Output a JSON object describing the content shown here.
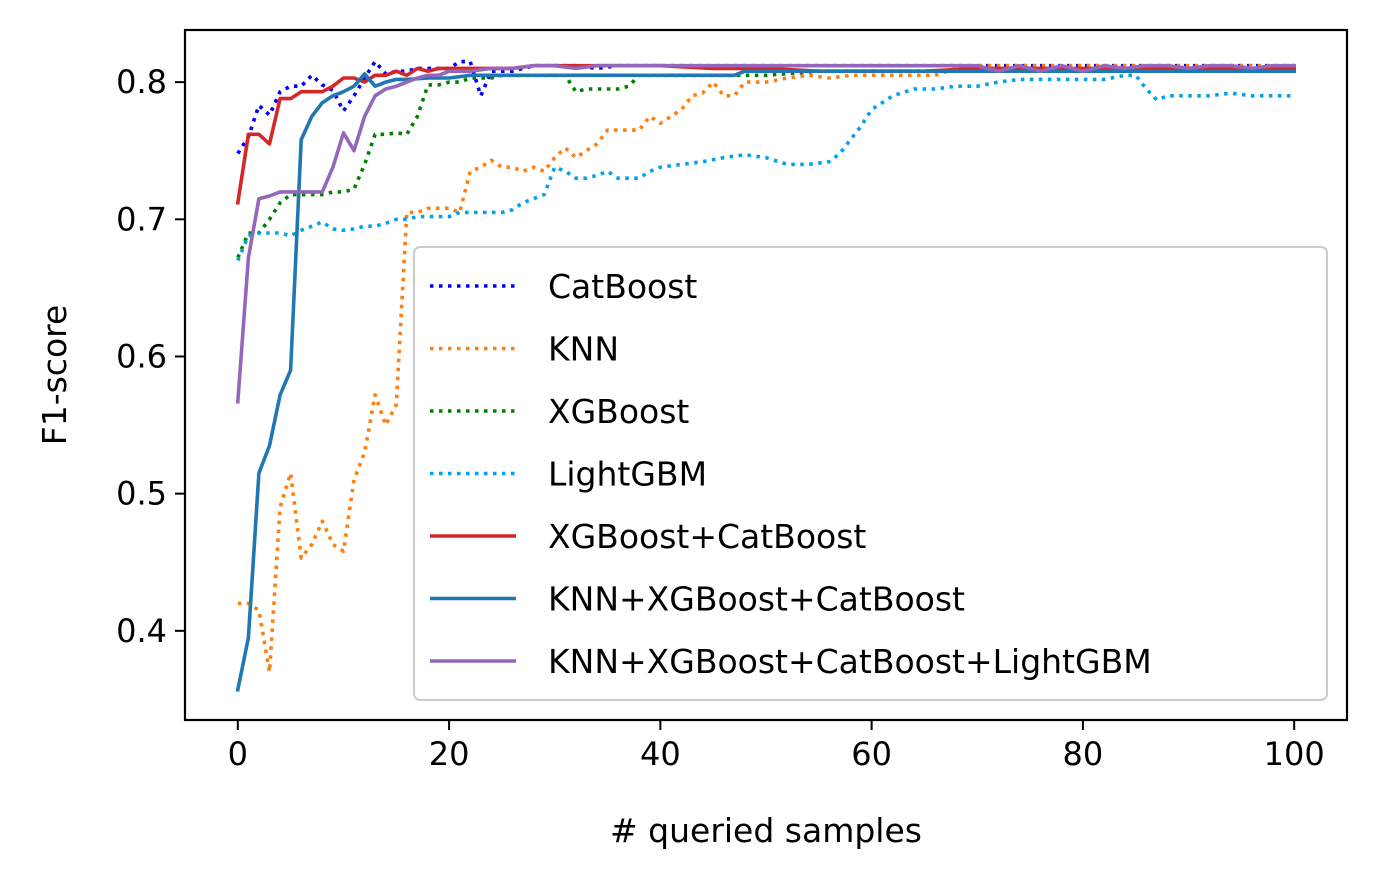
{
  "chart_data": {
    "type": "line",
    "xlabel": "# queried samples",
    "ylabel": "F1-score",
    "xlim": [
      -5,
      105
    ],
    "ylim": [
      0.335,
      0.838
    ],
    "xticks": [
      0,
      20,
      40,
      60,
      80,
      100
    ],
    "xtick_labels": [
      "0",
      "20",
      "40",
      "60",
      "80",
      "100"
    ],
    "yticks": [
      0.4,
      0.5,
      0.6,
      0.7,
      0.8
    ],
    "ytick_labels": [
      "0.4",
      "0.5",
      "0.6",
      "0.7",
      "0.8"
    ],
    "grid": false,
    "legend_position": "lower-right",
    "series": [
      {
        "name": "CatBoost",
        "color": "#0000ff",
        "style": "dotted",
        "x": [
          0,
          1,
          2,
          3,
          4,
          5,
          6,
          7,
          8,
          9,
          10,
          11,
          12,
          13,
          14,
          15,
          16,
          17,
          18,
          19,
          20,
          21,
          22,
          23,
          24,
          26,
          28,
          30,
          32,
          34,
          36,
          38,
          40,
          45,
          50,
          55,
          60,
          65,
          70,
          75,
          80,
          85,
          90,
          95,
          100
        ],
        "y": [
          0.748,
          0.76,
          0.783,
          0.776,
          0.793,
          0.797,
          0.797,
          0.805,
          0.798,
          0.794,
          0.779,
          0.79,
          0.803,
          0.815,
          0.806,
          0.808,
          0.808,
          0.81,
          0.81,
          0.81,
          0.81,
          0.815,
          0.815,
          0.79,
          0.808,
          0.808,
          0.812,
          0.812,
          0.812,
          0.81,
          0.812,
          0.812,
          0.812,
          0.812,
          0.812,
          0.812,
          0.812,
          0.812,
          0.812,
          0.812,
          0.812,
          0.812,
          0.812,
          0.812,
          0.812
        ]
      },
      {
        "name": "KNN",
        "color": "#ff7f0e",
        "style": "dotted",
        "x": [
          0,
          1,
          2,
          3,
          4,
          5,
          6,
          7,
          8,
          9,
          10,
          11,
          12,
          13,
          14,
          15,
          16,
          17,
          18,
          19,
          20,
          21,
          22,
          23,
          24,
          25,
          26,
          27,
          28,
          29,
          30,
          31,
          32,
          33,
          34,
          35,
          36,
          37,
          38,
          39,
          40,
          41,
          42,
          43,
          44,
          45,
          46,
          47,
          48,
          49,
          50,
          52,
          54,
          56,
          58,
          60,
          62,
          64,
          66,
          68,
          70,
          72,
          74,
          76,
          78,
          80,
          82,
          84,
          86,
          88,
          90,
          92,
          94,
          96,
          98,
          100
        ],
        "y": [
          0.42,
          0.42,
          0.415,
          0.37,
          0.49,
          0.515,
          0.453,
          0.463,
          0.48,
          0.463,
          0.458,
          0.51,
          0.53,
          0.572,
          0.55,
          0.565,
          0.705,
          0.705,
          0.708,
          0.708,
          0.708,
          0.705,
          0.735,
          0.738,
          0.743,
          0.738,
          0.738,
          0.735,
          0.738,
          0.735,
          0.745,
          0.752,
          0.745,
          0.75,
          0.755,
          0.765,
          0.765,
          0.765,
          0.765,
          0.775,
          0.77,
          0.775,
          0.78,
          0.79,
          0.792,
          0.8,
          0.79,
          0.79,
          0.8,
          0.8,
          0.8,
          0.803,
          0.805,
          0.803,
          0.805,
          0.805,
          0.805,
          0.805,
          0.805,
          0.81,
          0.812,
          0.812,
          0.812,
          0.812,
          0.812,
          0.812,
          0.812,
          0.812,
          0.812,
          0.812,
          0.812,
          0.812,
          0.812,
          0.812,
          0.812,
          0.812
        ]
      },
      {
        "name": "XGBoost",
        "color": "#008000",
        "style": "dotted",
        "x": [
          0,
          1,
          2,
          3,
          4,
          5,
          6,
          7,
          8,
          9,
          10,
          11,
          12,
          13,
          14,
          15,
          16,
          17,
          18,
          19,
          20,
          21,
          22,
          23,
          24,
          25,
          26,
          28,
          30,
          31,
          32,
          33,
          34,
          35,
          36,
          37,
          38,
          39,
          40,
          45,
          50,
          55,
          60,
          65,
          70,
          75,
          80,
          85,
          90,
          95,
          100
        ],
        "y": [
          0.672,
          0.69,
          0.69,
          0.7,
          0.712,
          0.718,
          0.718,
          0.718,
          0.718,
          0.72,
          0.72,
          0.722,
          0.74,
          0.762,
          0.762,
          0.763,
          0.762,
          0.775,
          0.798,
          0.798,
          0.8,
          0.8,
          0.803,
          0.803,
          0.803,
          0.805,
          0.805,
          0.805,
          0.805,
          0.805,
          0.793,
          0.795,
          0.795,
          0.795,
          0.795,
          0.797,
          0.805,
          0.805,
          0.805,
          0.805,
          0.805,
          0.808,
          0.808,
          0.808,
          0.808,
          0.808,
          0.808,
          0.808,
          0.808,
          0.808,
          0.808
        ]
      },
      {
        "name": "LightGBM",
        "color": "#00a2e8",
        "style": "dotted",
        "x": [
          0,
          1,
          2,
          3,
          4,
          5,
          6,
          7,
          8,
          9,
          10,
          11,
          12,
          13,
          14,
          15,
          16,
          17,
          18,
          19,
          20,
          21,
          22,
          23,
          24,
          25,
          26,
          27,
          28,
          29,
          30,
          31,
          32,
          33,
          34,
          35,
          36,
          37,
          38,
          39,
          40,
          42,
          44,
          46,
          48,
          50,
          52,
          54,
          56,
          57,
          58,
          59,
          60,
          61,
          62,
          64,
          66,
          68,
          70,
          72,
          74,
          76,
          78,
          80,
          82,
          84,
          85,
          86,
          87,
          88,
          90,
          92,
          94,
          96,
          98,
          100
        ],
        "y": [
          0.67,
          0.688,
          0.69,
          0.69,
          0.69,
          0.688,
          0.692,
          0.695,
          0.698,
          0.693,
          0.692,
          0.693,
          0.695,
          0.695,
          0.697,
          0.7,
          0.7,
          0.702,
          0.702,
          0.702,
          0.702,
          0.705,
          0.705,
          0.705,
          0.705,
          0.705,
          0.707,
          0.712,
          0.715,
          0.718,
          0.738,
          0.735,
          0.73,
          0.73,
          0.732,
          0.735,
          0.73,
          0.73,
          0.73,
          0.735,
          0.738,
          0.74,
          0.742,
          0.745,
          0.747,
          0.745,
          0.74,
          0.74,
          0.742,
          0.748,
          0.758,
          0.768,
          0.78,
          0.785,
          0.79,
          0.795,
          0.795,
          0.797,
          0.797,
          0.8,
          0.802,
          0.802,
          0.802,
          0.802,
          0.802,
          0.805,
          0.805,
          0.795,
          0.787,
          0.79,
          0.79,
          0.79,
          0.792,
          0.79,
          0.79,
          0.79
        ]
      },
      {
        "name": "XGBoost+CatBoost",
        "color": "#d62728",
        "style": "solid",
        "x": [
          0,
          1,
          2,
          3,
          4,
          5,
          6,
          7,
          8,
          9,
          10,
          11,
          12,
          13,
          14,
          15,
          16,
          17,
          18,
          19,
          20,
          22,
          24,
          26,
          28,
          30,
          32,
          34,
          36,
          38,
          40,
          45,
          50,
          55,
          60,
          65,
          70,
          75,
          80,
          85,
          90,
          95,
          100
        ],
        "y": [
          0.712,
          0.762,
          0.762,
          0.755,
          0.788,
          0.788,
          0.793,
          0.793,
          0.793,
          0.797,
          0.803,
          0.803,
          0.8,
          0.805,
          0.805,
          0.808,
          0.805,
          0.81,
          0.808,
          0.81,
          0.81,
          0.81,
          0.81,
          0.81,
          0.812,
          0.812,
          0.812,
          0.812,
          0.812,
          0.812,
          0.812,
          0.81,
          0.81,
          0.808,
          0.808,
          0.808,
          0.81,
          0.81,
          0.81,
          0.81,
          0.81,
          0.81,
          0.81
        ]
      },
      {
        "name": "KNN+XGBoost+CatBoost",
        "color": "#1f77b4",
        "style": "solid",
        "x": [
          0,
          1,
          2,
          3,
          4,
          5,
          6,
          7,
          8,
          9,
          10,
          11,
          12,
          13,
          14,
          15,
          16,
          18,
          20,
          22,
          24,
          26,
          28,
          30,
          32,
          34,
          36,
          38,
          40,
          42,
          44,
          46,
          47,
          48,
          50,
          55,
          60,
          65,
          70,
          75,
          80,
          85,
          90,
          95,
          100
        ],
        "y": [
          0.357,
          0.395,
          0.515,
          0.535,
          0.572,
          0.59,
          0.758,
          0.775,
          0.785,
          0.79,
          0.793,
          0.797,
          0.806,
          0.797,
          0.8,
          0.802,
          0.802,
          0.803,
          0.803,
          0.805,
          0.805,
          0.805,
          0.805,
          0.805,
          0.805,
          0.805,
          0.805,
          0.805,
          0.805,
          0.805,
          0.805,
          0.805,
          0.805,
          0.808,
          0.808,
          0.808,
          0.808,
          0.808,
          0.808,
          0.808,
          0.808,
          0.808,
          0.808,
          0.808,
          0.808
        ]
      },
      {
        "name": "KNN+XGBoost+CatBoost+LightGBM",
        "color": "#9467bd",
        "style": "solid",
        "x": [
          0,
          1,
          2,
          3,
          4,
          5,
          6,
          7,
          8,
          9,
          10,
          11,
          12,
          13,
          14,
          15,
          16,
          17,
          18,
          19,
          20,
          22,
          24,
          26,
          28,
          30,
          32,
          34,
          36,
          38,
          40,
          45,
          50,
          55,
          60,
          65,
          70,
          72,
          74,
          76,
          78,
          80,
          82,
          84,
          86,
          88,
          90,
          92,
          94,
          96,
          98,
          100
        ],
        "y": [
          0.567,
          0.672,
          0.715,
          0.717,
          0.72,
          0.72,
          0.72,
          0.72,
          0.72,
          0.738,
          0.763,
          0.75,
          0.775,
          0.79,
          0.795,
          0.797,
          0.8,
          0.803,
          0.805,
          0.805,
          0.808,
          0.808,
          0.81,
          0.81,
          0.812,
          0.812,
          0.81,
          0.812,
          0.812,
          0.812,
          0.812,
          0.812,
          0.812,
          0.812,
          0.812,
          0.812,
          0.812,
          0.808,
          0.812,
          0.808,
          0.812,
          0.808,
          0.812,
          0.81,
          0.812,
          0.812,
          0.81,
          0.812,
          0.812,
          0.81,
          0.812,
          0.812
        ]
      }
    ]
  }
}
